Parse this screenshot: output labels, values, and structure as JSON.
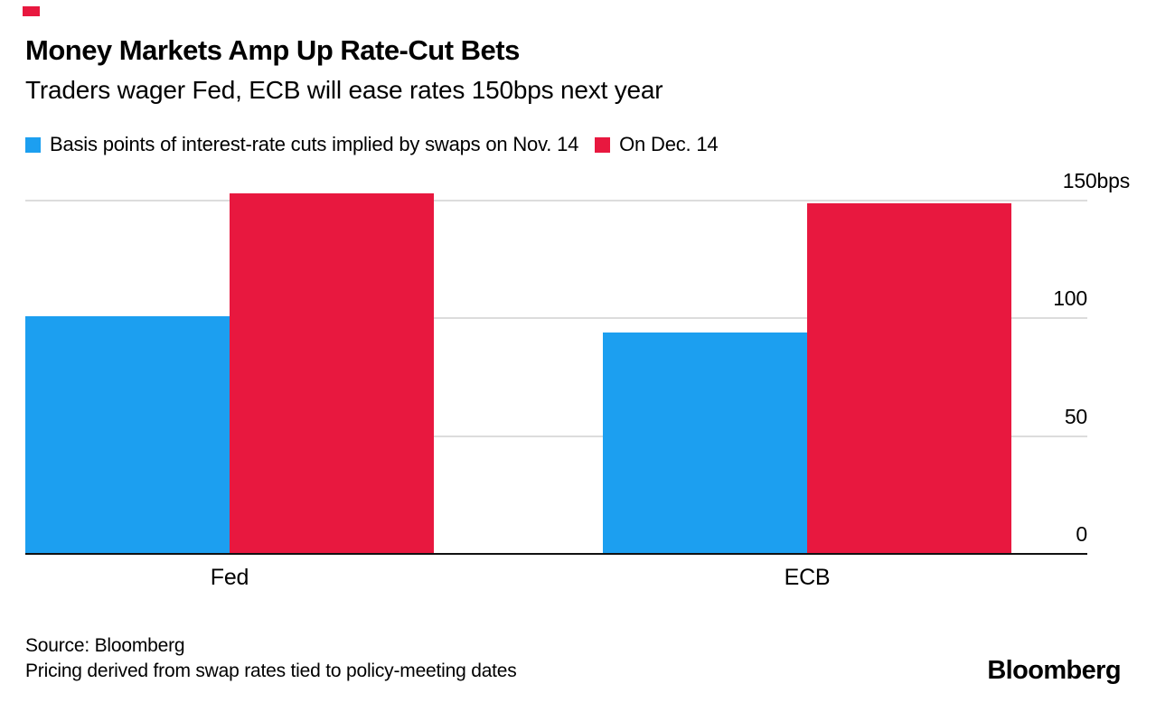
{
  "header": {
    "title": "Money Markets Amp Up Rate-Cut Bets",
    "subtitle": "Traders wager Fed, ECB will ease rates 150bps next year"
  },
  "chart_data": {
    "type": "bar",
    "grouped": true,
    "title": "Money Markets Amp Up Rate-Cut Bets",
    "subtitle": "Traders wager Fed, ECB will ease rates 150bps next year",
    "categories": [
      "Fed",
      "ECB"
    ],
    "series": [
      {
        "name": "Basis points of interest-rate cuts implied by swaps on Nov. 14",
        "color": "#1c9ff0",
        "values": [
          101,
          94
        ]
      },
      {
        "name": "On Dec. 14",
        "color": "#e8183f",
        "values": [
          153,
          149
        ]
      }
    ],
    "unit": "bps",
    "ylim": [
      0,
      150
    ],
    "yticks": [
      {
        "value": 0,
        "label": "0"
      },
      {
        "value": 50,
        "label": "50"
      },
      {
        "value": 100,
        "label": "100"
      },
      {
        "value": 150,
        "label": "150bps"
      }
    ],
    "legend_position": "top",
    "axis_side": "right",
    "gridlines": true
  },
  "footer": {
    "source": "Source: Bloomberg",
    "note": "Pricing derived from swap rates tied to policy-meeting dates",
    "brand": "Bloomberg"
  },
  "colors": {
    "accent_blue": "#1c9ff0",
    "accent_red": "#e8183f",
    "gridline": "#dcdcdc",
    "axis": "#111111",
    "text": "#000000",
    "background": "#ffffff"
  }
}
